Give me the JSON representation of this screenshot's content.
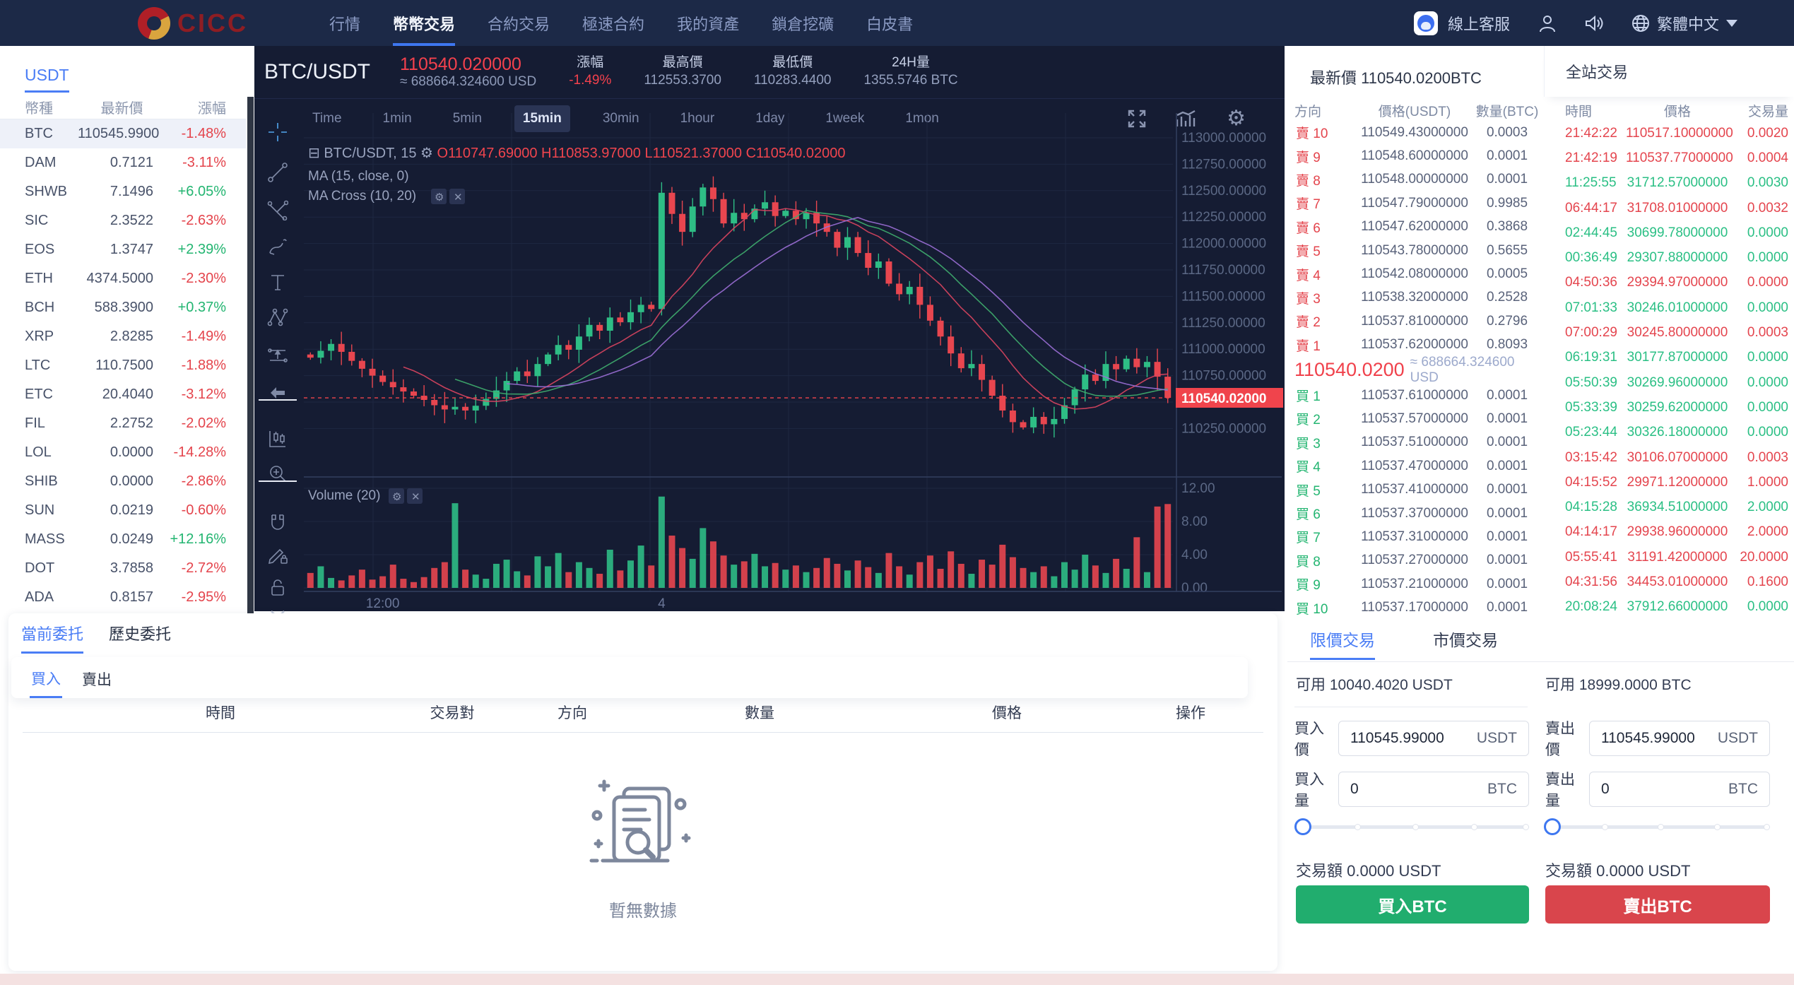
{
  "nav": {
    "logo_text": "CICC",
    "items": [
      {
        "label": "行情",
        "active": false
      },
      {
        "label": "幣幣交易",
        "active": true
      },
      {
        "label": "合約交易",
        "active": false
      },
      {
        "label": "極速合約",
        "active": false
      },
      {
        "label": "我的資產",
        "active": false
      },
      {
        "label": "鎖倉挖礦",
        "active": false
      },
      {
        "label": "白皮書",
        "active": false
      }
    ],
    "support_label": "線上客服",
    "language_label": "繁體中文"
  },
  "sidebar": {
    "tab": "USDT",
    "headers": [
      "幣種",
      "最新價",
      "漲幅"
    ],
    "coins": [
      {
        "symbol": "BTC",
        "price": "110545.9900",
        "change": "-1.48%",
        "dir": "down",
        "selected": true
      },
      {
        "symbol": "DAM",
        "price": "0.7121",
        "change": "-3.11%",
        "dir": "down",
        "selected": false
      },
      {
        "symbol": "SHWB",
        "price": "7.1496",
        "change": "+6.05%",
        "dir": "up",
        "selected": false
      },
      {
        "symbol": "SIC",
        "price": "2.3522",
        "change": "-2.63%",
        "dir": "down",
        "selected": false
      },
      {
        "symbol": "EOS",
        "price": "1.3747",
        "change": "+2.39%",
        "dir": "up",
        "selected": false
      },
      {
        "symbol": "ETH",
        "price": "4374.5000",
        "change": "-2.30%",
        "dir": "down",
        "selected": false
      },
      {
        "symbol": "BCH",
        "price": "588.3900",
        "change": "+0.37%",
        "dir": "up",
        "selected": false
      },
      {
        "symbol": "XRP",
        "price": "2.8285",
        "change": "-1.49%",
        "dir": "down",
        "selected": false
      },
      {
        "symbol": "LTC",
        "price": "110.7500",
        "change": "-1.88%",
        "dir": "down",
        "selected": false
      },
      {
        "symbol": "ETC",
        "price": "20.4040",
        "change": "-3.12%",
        "dir": "down",
        "selected": false
      },
      {
        "symbol": "FIL",
        "price": "2.2752",
        "change": "-2.02%",
        "dir": "down",
        "selected": false
      },
      {
        "symbol": "LOL",
        "price": "0.0000",
        "change": "-14.28%",
        "dir": "down",
        "selected": false
      },
      {
        "symbol": "SHIB",
        "price": "0.0000",
        "change": "-2.86%",
        "dir": "down",
        "selected": false
      },
      {
        "symbol": "SUN",
        "price": "0.0219",
        "change": "-0.60%",
        "dir": "down",
        "selected": false
      },
      {
        "symbol": "MASS",
        "price": "0.0249",
        "change": "+12.16%",
        "dir": "up",
        "selected": false
      },
      {
        "symbol": "DOT",
        "price": "3.7858",
        "change": "-2.72%",
        "dir": "down",
        "selected": false
      },
      {
        "symbol": "ADA",
        "price": "0.8157",
        "change": "-2.95%",
        "dir": "down",
        "selected": false
      }
    ]
  },
  "chart": {
    "pair": "BTC/USDT",
    "price": "110540.020000",
    "price_approx": "≈ 688664.324600 USD",
    "stats": [
      {
        "label": "漲幅",
        "value": "-1.49%",
        "red": true
      },
      {
        "label": "最高價",
        "value": "112553.3700",
        "red": false
      },
      {
        "label": "最低價",
        "value": "110283.4400",
        "red": false
      },
      {
        "label": "24H量",
        "value": "1355.5746 BTC",
        "red": false
      }
    ],
    "timeframes": [
      "Time",
      "1min",
      "5min",
      "15min",
      "30min",
      "1hour",
      "1day",
      "1week",
      "1mon"
    ],
    "active_timeframe": "15min",
    "chart_data": {
      "type": "candlestick",
      "title": "BTC/USDT, 15",
      "interval": "15min",
      "legend_ohlc": {
        "o": "110747.69000",
        "h": "110853.97000",
        "l": "110521.37000",
        "c": "110540.02000"
      },
      "indicators": [
        "MA (15, close, 0)",
        "MA Cross (10, 20)",
        "Volume (20)"
      ],
      "y_axis": {
        "min": 110250,
        "max": 113000,
        "step": 250,
        "labels": [
          "113000.00000",
          "112750.00000",
          "112500.00000",
          "112250.00000",
          "112000.00000",
          "111750.00000",
          "111500.00000",
          "111250.00000",
          "111000.00000",
          "110750.00000",
          "110500.00000",
          "110250.00000"
        ]
      },
      "volume_axis": {
        "labels": [
          "12.00",
          "8.00",
          "4.00",
          "0.00"
        ],
        "max": 12
      },
      "x_labels": [
        {
          "text": "12:00",
          "index": 7
        },
        {
          "text": "4",
          "index": 34
        }
      ],
      "current_price": 110540.02,
      "current_price_label": "110540.02000",
      "closes": [
        110920,
        110985,
        111050,
        110975,
        110890,
        110815,
        110750,
        110690,
        110640,
        110600,
        110560,
        110520,
        110470,
        110430,
        110455,
        110420,
        110465,
        110530,
        110610,
        110700,
        110790,
        110745,
        110860,
        110950,
        111040,
        110995,
        111120,
        111230,
        111175,
        111300,
        111255,
        111350,
        111420,
        111380,
        112480,
        112280,
        112110,
        112350,
        112530,
        112420,
        112190,
        112290,
        112230,
        112330,
        112390,
        112260,
        112310,
        112230,
        112290,
        112190,
        112110,
        111960,
        112060,
        111910,
        111770,
        111830,
        111620,
        111520,
        111590,
        111420,
        111270,
        111120,
        110960,
        110820,
        110860,
        110710,
        110560,
        110420,
        110310,
        110260,
        110360,
        110290,
        110340,
        110470,
        110620,
        110760,
        110700,
        110860,
        110810,
        110910,
        110830,
        110880,
        110740,
        110540
      ],
      "volumes": [
        1.8,
        2.6,
        1.2,
        0.9,
        1.5,
        2.2,
        1.0,
        1.4,
        2.8,
        1.1,
        0.7,
        1.3,
        2.4,
        3.1,
        10.2,
        2.2,
        1.6,
        1.1,
        2.9,
        3.4,
        2.0,
        1.5,
        3.8,
        2.6,
        4.2,
        1.9,
        3.1,
        2.4,
        1.7,
        4.6,
        2.1,
        3.3,
        5.1,
        2.7,
        11.0,
        6.3,
        4.8,
        3.5,
        7.2,
        5.6,
        3.9,
        2.8,
        3.2,
        4.1,
        2.6,
        3.0,
        2.2,
        2.7,
        1.9,
        2.4,
        3.6,
        2.9,
        2.1,
        3.3,
        2.5,
        1.8,
        4.2,
        2.6,
        1.6,
        3.1,
        3.9,
        2.3,
        4.4,
        2.9,
        1.7,
        3.4,
        2.8,
        5.2,
        3.7,
        2.4,
        1.9,
        2.6,
        1.4,
        3.1,
        2.2,
        4.0,
        2.7,
        1.8,
        3.5,
        2.3,
        6.1,
        1.9,
        9.8,
        10.1
      ],
      "colors": {
        "up": "#2ebd85",
        "down": "#e8464f",
        "ma10": "#d9455f",
        "ma15": "#3fae6e",
        "ma20": "#9b6fd6"
      }
    }
  },
  "market": {
    "last_price_title": "最新價 110540.0200BTC",
    "trades_title": "全站交易",
    "ob_headers": [
      "方向",
      "價格(USDT)",
      "數量(BTC)"
    ],
    "trade_headers": [
      "時間",
      "價格",
      "交易量"
    ],
    "asks": [
      {
        "dir": "賣 10",
        "price": "110549.43000000",
        "qty": "0.0003"
      },
      {
        "dir": "賣 9",
        "price": "110548.60000000",
        "qty": "0.0001"
      },
      {
        "dir": "賣 8",
        "price": "110548.00000000",
        "qty": "0.0001"
      },
      {
        "dir": "賣 7",
        "price": "110547.79000000",
        "qty": "0.9985"
      },
      {
        "dir": "賣 6",
        "price": "110547.62000000",
        "qty": "0.3868"
      },
      {
        "dir": "賣 5",
        "price": "110543.78000000",
        "qty": "0.5655"
      },
      {
        "dir": "賣 4",
        "price": "110542.08000000",
        "qty": "0.0005"
      },
      {
        "dir": "賣 3",
        "price": "110538.32000000",
        "qty": "0.2528"
      },
      {
        "dir": "賣 2",
        "price": "110537.81000000",
        "qty": "0.2796"
      },
      {
        "dir": "賣 1",
        "price": "110537.62000000",
        "qty": "0.8093"
      }
    ],
    "mid": {
      "price": "110540.0200",
      "approx": "≈ 688664.324600 USD"
    },
    "bids": [
      {
        "dir": "買 1",
        "price": "110537.61000000",
        "qty": "0.0001"
      },
      {
        "dir": "買 2",
        "price": "110537.57000000",
        "qty": "0.0001"
      },
      {
        "dir": "買 3",
        "price": "110537.51000000",
        "qty": "0.0001"
      },
      {
        "dir": "買 4",
        "price": "110537.47000000",
        "qty": "0.0001"
      },
      {
        "dir": "買 5",
        "price": "110537.41000000",
        "qty": "0.0001"
      },
      {
        "dir": "買 6",
        "price": "110537.37000000",
        "qty": "0.0001"
      },
      {
        "dir": "買 7",
        "price": "110537.31000000",
        "qty": "0.0001"
      },
      {
        "dir": "買 8",
        "price": "110537.27000000",
        "qty": "0.0001"
      },
      {
        "dir": "買 9",
        "price": "110537.21000000",
        "qty": "0.0001"
      },
      {
        "dir": "買 10",
        "price": "110537.17000000",
        "qty": "0.0001"
      }
    ],
    "trades": [
      {
        "time": "21:42:22",
        "price": "110517.10000000",
        "qty": "0.0020",
        "side": "down"
      },
      {
        "time": "21:42:19",
        "price": "110537.77000000",
        "qty": "0.0004",
        "side": "down"
      },
      {
        "time": "11:25:55",
        "price": "31712.57000000",
        "qty": "0.0030",
        "side": "up"
      },
      {
        "time": "06:44:17",
        "price": "31708.01000000",
        "qty": "0.0032",
        "side": "down"
      },
      {
        "time": "02:44:45",
        "price": "30699.78000000",
        "qty": "0.0000",
        "side": "up"
      },
      {
        "time": "00:36:49",
        "price": "29307.88000000",
        "qty": "0.0000",
        "side": "up"
      },
      {
        "time": "04:50:36",
        "price": "29394.97000000",
        "qty": "0.0000",
        "side": "down"
      },
      {
        "time": "07:01:33",
        "price": "30246.01000000",
        "qty": "0.0000",
        "side": "up"
      },
      {
        "time": "07:00:29",
        "price": "30245.80000000",
        "qty": "0.0003",
        "side": "down"
      },
      {
        "time": "06:19:31",
        "price": "30177.87000000",
        "qty": "0.0000",
        "side": "up"
      },
      {
        "time": "05:50:39",
        "price": "30269.96000000",
        "qty": "0.0000",
        "side": "up"
      },
      {
        "time": "05:33:39",
        "price": "30259.62000000",
        "qty": "0.0000",
        "side": "up"
      },
      {
        "time": "05:23:44",
        "price": "30326.18000000",
        "qty": "0.0000",
        "side": "up"
      },
      {
        "time": "03:15:42",
        "price": "30106.07000000",
        "qty": "0.0003",
        "side": "down"
      },
      {
        "time": "04:15:52",
        "price": "29971.12000000",
        "qty": "1.0000",
        "side": "down"
      },
      {
        "time": "04:15:28",
        "price": "36934.51000000",
        "qty": "2.0000",
        "side": "up"
      },
      {
        "time": "04:14:17",
        "price": "29938.96000000",
        "qty": "2.0000",
        "side": "down"
      },
      {
        "time": "05:55:41",
        "price": "31191.42000000",
        "qty": "20.0000",
        "side": "down"
      },
      {
        "time": "04:31:56",
        "price": "34453.01000000",
        "qty": "0.1600",
        "side": "down"
      },
      {
        "time": "20:08:24",
        "price": "37912.66000000",
        "qty": "0.0000",
        "side": "up"
      }
    ]
  },
  "trade_form": {
    "tabs": [
      {
        "label": "限價交易",
        "active": true
      },
      {
        "label": "市價交易",
        "active": false
      }
    ],
    "buy": {
      "available": "可用 10040.4020 USDT",
      "price_label": "買入價",
      "price_value": "110545.99000",
      "price_unit": "USDT",
      "amount_label": "買入量",
      "amount_value": "0",
      "amount_unit": "BTC",
      "total": "交易額 0.0000 USDT",
      "button": "買入BTC"
    },
    "sell": {
      "available": "可用 18999.0000 BTC",
      "price_label": "賣出價",
      "price_value": "110545.99000",
      "price_unit": "USDT",
      "amount_label": "賣出量",
      "amount_value": "0",
      "amount_unit": "BTC",
      "total": "交易額 0.0000 USDT",
      "button": "賣出BTC"
    }
  },
  "orders": {
    "tabs": [
      {
        "label": "當前委托",
        "active": true
      },
      {
        "label": "歷史委托",
        "active": false
      }
    ],
    "sub_tabs": [
      {
        "label": "買入",
        "active": true
      },
      {
        "label": "賣出",
        "active": false
      }
    ],
    "headers": [
      "時間",
      "交易對",
      "方向",
      "數量",
      "價格",
      "操作"
    ],
    "empty_text": "暫無數據"
  }
}
